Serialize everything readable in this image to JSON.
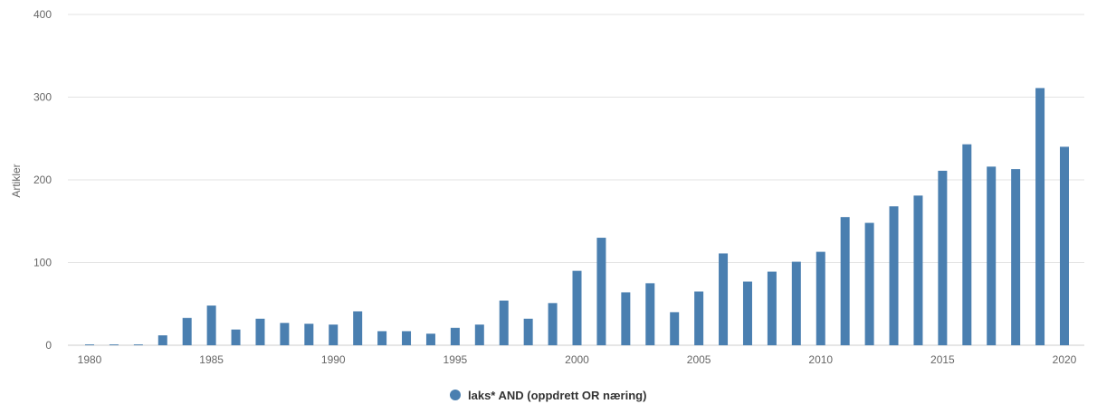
{
  "chart_data": {
    "type": "bar",
    "ylabel": "Artikler",
    "ylim": [
      0,
      400
    ],
    "yticks": [
      0,
      100,
      200,
      300,
      400
    ],
    "xticks": [
      1980,
      1985,
      1990,
      1995,
      2000,
      2005,
      2010,
      2015,
      2020
    ],
    "grid": true,
    "legend_position": "bottom-center",
    "x": [
      1980,
      1981,
      1982,
      1983,
      1984,
      1985,
      1986,
      1987,
      1988,
      1989,
      1990,
      1991,
      1992,
      1993,
      1994,
      1995,
      1996,
      1997,
      1998,
      1999,
      2000,
      2001,
      2002,
      2003,
      2004,
      2005,
      2006,
      2007,
      2008,
      2009,
      2010,
      2011,
      2012,
      2013,
      2014,
      2015,
      2016,
      2017,
      2018,
      2019,
      2020
    ],
    "series": [
      {
        "name": "laks* AND (oppdrett OR næring)",
        "color": "#4a7fb0",
        "values": [
          1,
          1,
          1,
          12,
          33,
          48,
          19,
          32,
          27,
          26,
          25,
          41,
          17,
          17,
          14,
          21,
          25,
          54,
          32,
          51,
          90,
          130,
          64,
          75,
          40,
          65,
          111,
          77,
          89,
          101,
          113,
          155,
          148,
          168,
          181,
          211,
          243,
          216,
          213,
          311,
          240
        ]
      }
    ]
  }
}
